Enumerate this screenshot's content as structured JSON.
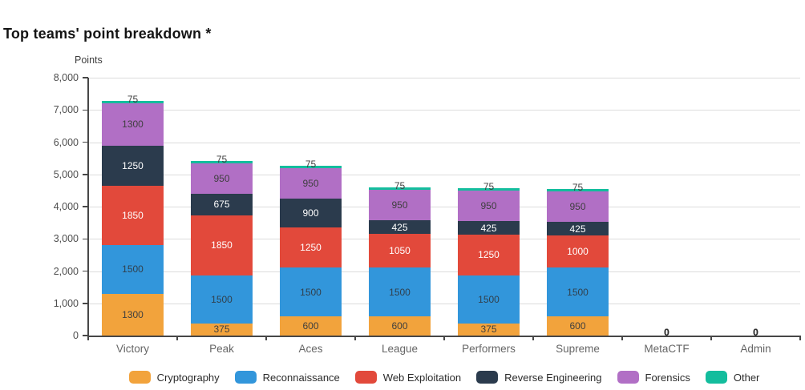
{
  "title": "Top teams' point breakdown *",
  "y_axis_title": "Points",
  "chart_data": {
    "type": "bar",
    "stacked": true,
    "orientation": "vertical",
    "title": "Top teams' point breakdown *",
    "ylabel": "Points",
    "xlabel": "",
    "ylim": [
      0,
      8000
    ],
    "ytick_step": 1000,
    "grid": true,
    "legend_position": "bottom",
    "categories": [
      "Victory",
      "Peak",
      "Aces",
      "League",
      "Performers",
      "Supreme",
      "MetaCTF",
      "Admin"
    ],
    "series": [
      {
        "name": "Cryptography",
        "color": "#F2A33C",
        "label_color": "#3f3f3f",
        "values": [
          1300,
          375,
          600,
          600,
          375,
          600,
          0,
          0
        ]
      },
      {
        "name": "Reconnaissance",
        "color": "#3296DB",
        "label_color": "#31404d",
        "values": [
          1500,
          1500,
          1500,
          1500,
          1500,
          1500,
          0,
          0
        ]
      },
      {
        "name": "Web Exploitation",
        "color": "#E2493B",
        "label_color": "#ffffff",
        "values": [
          1850,
          1850,
          1250,
          1050,
          1250,
          1000,
          0,
          0
        ]
      },
      {
        "name": "Reverse Engineering",
        "color": "#2B3B4D",
        "label_color": "#ffffff",
        "values": [
          1250,
          675,
          900,
          425,
          425,
          425,
          0,
          0
        ]
      },
      {
        "name": "Forensics",
        "color": "#B16FC5",
        "label_color": "#3f3f3f",
        "values": [
          1300,
          950,
          950,
          950,
          950,
          950,
          0,
          0
        ]
      },
      {
        "name": "Other",
        "color": "#13BD9D",
        "label_color": "#3f3f3f",
        "values": [
          75,
          75,
          75,
          75,
          75,
          75,
          0,
          0
        ]
      }
    ],
    "totals": [
      7275,
      5425,
      5275,
      4600,
      4575,
      4550,
      0,
      0
    ]
  },
  "colors": {
    "axis": "#474747",
    "gridline": "#dcdcdc",
    "title_text": "#141414",
    "tick_text": "#4d4d4d",
    "category_text": "#666666"
  }
}
